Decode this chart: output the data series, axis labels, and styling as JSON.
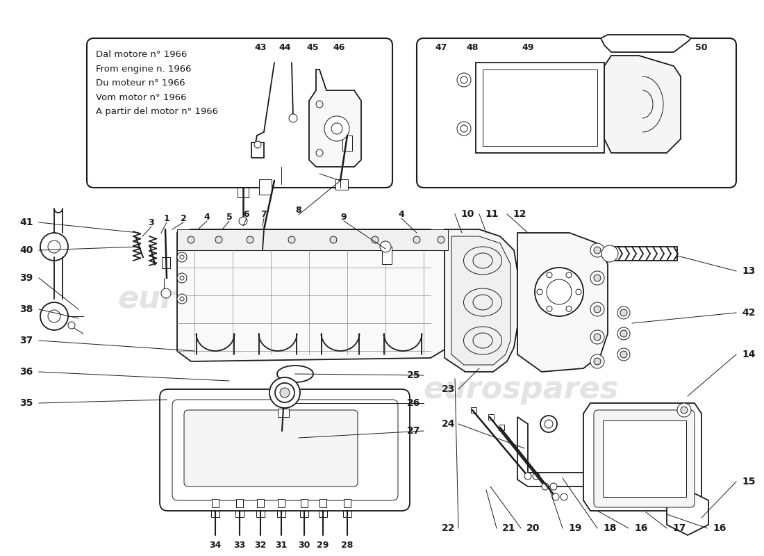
{
  "bg_color": "#ffffff",
  "line_color": "#1a1a1a",
  "watermark_color": "#cccccc",
  "watermark_text": "eurospares",
  "box1_text": "Dal motore n° 1966\nFrom engine n. 1966\nDu moteur n° 1966\nVom motor n° 1966\nA partir del motor n° 1966",
  "font_size_labels": 10,
  "font_size_box_text": 9.5,
  "font_size_watermark": 32,
  "lw_main": 1.3,
  "lw_thin": 0.7,
  "lw_thick": 2.0
}
